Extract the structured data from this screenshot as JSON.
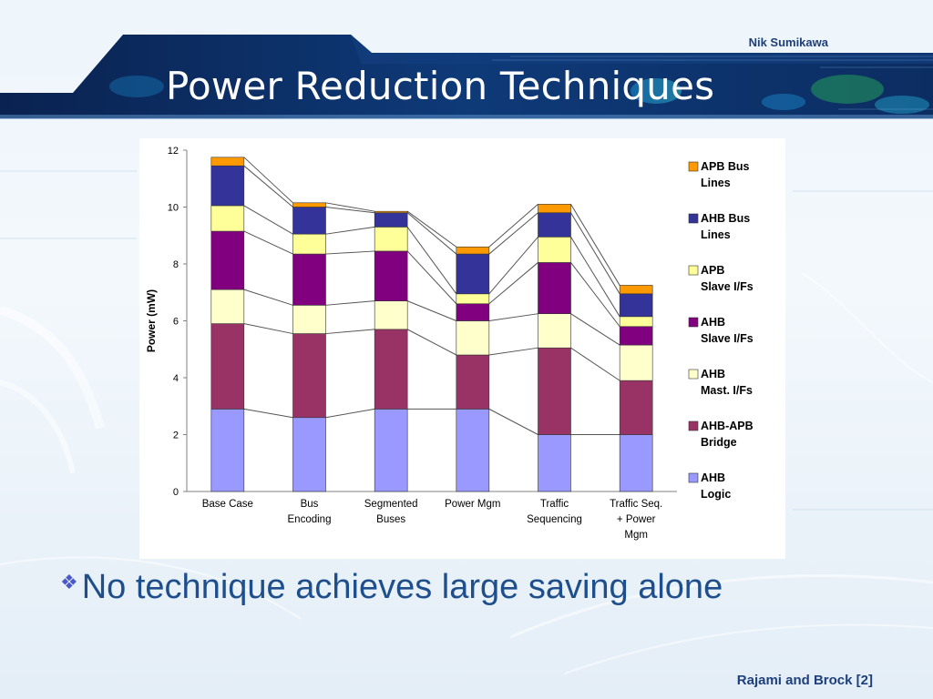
{
  "header": {
    "author": "Nik Sumikawa",
    "title": "Power Reduction Techniques"
  },
  "bullet": {
    "marker": "❖",
    "text": "No technique achieves large saving alone"
  },
  "footer": {
    "citation": "Rajami and Brock [2]"
  },
  "colors": {
    "header_band": "#0b2a5c",
    "header_accent": "#1aa0d8",
    "text_blue": "#1f4e8c"
  },
  "chart_data": {
    "type": "bar",
    "stacked": true,
    "ylabel": "Power (mW)",
    "ylim": [
      0,
      12
    ],
    "yticks": [
      0,
      2,
      4,
      6,
      8,
      10,
      12
    ],
    "categories": [
      [
        "Base Case"
      ],
      [
        "Bus",
        "Encoding"
      ],
      [
        "Segmented",
        "Buses"
      ],
      [
        "Power Mgm"
      ],
      [
        "Traffic",
        "Sequencing"
      ],
      [
        "Traffic Seq.",
        "+ Power",
        "Mgm"
      ]
    ],
    "grid": false,
    "legend_position": "right",
    "series": [
      {
        "name": "AHB Logic",
        "label_lines": [
          "AHB",
          "Logic"
        ],
        "color": "#9999ff",
        "values": [
          2.9,
          2.6,
          2.9,
          2.9,
          2.0,
          2.0
        ]
      },
      {
        "name": "AHB-APB Bridge",
        "label_lines": [
          "AHB-APB",
          "Bridge"
        ],
        "color": "#993366",
        "values": [
          3.0,
          2.95,
          2.8,
          1.9,
          3.05,
          1.9
        ]
      },
      {
        "name": "AHB Mast. I/Fs",
        "label_lines": [
          "AHB",
          "Mast. I/Fs"
        ],
        "color": "#ffffcc",
        "values": [
          1.2,
          1.0,
          1.0,
          1.2,
          1.2,
          1.25
        ]
      },
      {
        "name": "AHB Slave I/Fs",
        "label_lines": [
          "AHB",
          "Slave I/Fs"
        ],
        "color": "#800080",
        "values": [
          2.05,
          1.8,
          1.75,
          0.6,
          1.8,
          0.65
        ]
      },
      {
        "name": "APB Slave I/Fs",
        "label_lines": [
          "APB",
          "Slave I/Fs"
        ],
        "color": "#ffff99",
        "values": [
          0.9,
          0.7,
          0.85,
          0.35,
          0.9,
          0.35
        ]
      },
      {
        "name": "AHB Bus Lines",
        "label_lines": [
          "AHB Bus",
          "Lines"
        ],
        "color": "#333399",
        "values": [
          1.4,
          0.95,
          0.5,
          1.4,
          0.85,
          0.8
        ]
      },
      {
        "name": "APB Bus Lines",
        "label_lines": [
          "APB Bus",
          "Lines"
        ],
        "color": "#ff9900",
        "values": [
          0.3,
          0.15,
          0.05,
          0.25,
          0.3,
          0.3
        ]
      }
    ]
  }
}
